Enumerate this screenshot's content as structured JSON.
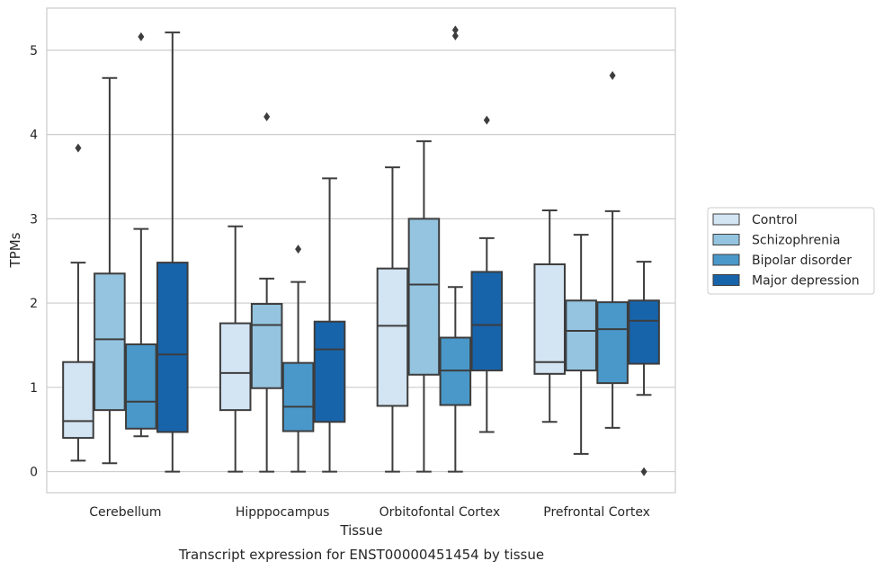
{
  "chart_data": {
    "type": "box",
    "title": "",
    "caption": "Transcript expression for ENST00000451454 by tissue",
    "xlabel": "Tissue",
    "ylabel": "TPMs",
    "ylim": [
      -0.25,
      5.5
    ],
    "yticks": [
      0,
      1,
      2,
      3,
      4,
      5
    ],
    "grid": "horizontal",
    "legend_position": "right",
    "categories": [
      "Cerebellum",
      "Hipppocampus",
      "Orbitofontal Cortex",
      "Prefrontal Cortex"
    ],
    "series": [
      {
        "name": "Control",
        "color": "#d3e4f3",
        "boxes": [
          {
            "whisker_low": 0.13,
            "q1": 0.4,
            "median": 0.6,
            "q3": 1.3,
            "whisker_high": 2.48,
            "outliers": [
              3.84
            ]
          },
          {
            "whisker_low": 0.0,
            "q1": 0.73,
            "median": 1.17,
            "q3": 1.76,
            "whisker_high": 2.91,
            "outliers": []
          },
          {
            "whisker_low": 0.0,
            "q1": 0.78,
            "median": 1.73,
            "q3": 2.41,
            "whisker_high": 3.61,
            "outliers": []
          },
          {
            "whisker_low": 0.59,
            "q1": 1.16,
            "median": 1.3,
            "q3": 2.46,
            "whisker_high": 3.1,
            "outliers": []
          }
        ]
      },
      {
        "name": "Schizophrenia",
        "color": "#94c4df",
        "boxes": [
          {
            "whisker_low": 0.1,
            "q1": 0.73,
            "median": 1.57,
            "q3": 2.35,
            "whisker_high": 4.67,
            "outliers": []
          },
          {
            "whisker_low": 0.0,
            "q1": 0.99,
            "median": 1.74,
            "q3": 1.99,
            "whisker_high": 2.29,
            "outliers": [
              4.21
            ]
          },
          {
            "whisker_low": 0.0,
            "q1": 1.15,
            "median": 2.22,
            "q3": 3.0,
            "whisker_high": 3.92,
            "outliers": []
          },
          {
            "whisker_low": 0.21,
            "q1": 1.2,
            "median": 1.67,
            "q3": 2.03,
            "whisker_high": 2.81,
            "outliers": []
          }
        ]
      },
      {
        "name": "Bipolar disorder",
        "color": "#4a98c9",
        "boxes": [
          {
            "whisker_low": 0.42,
            "q1": 0.51,
            "median": 0.83,
            "q3": 1.51,
            "whisker_high": 2.88,
            "outliers": [
              5.16
            ]
          },
          {
            "whisker_low": 0.0,
            "q1": 0.48,
            "median": 0.77,
            "q3": 1.29,
            "whisker_high": 2.25,
            "outliers": [
              2.64
            ]
          },
          {
            "whisker_low": 0.0,
            "q1": 0.79,
            "median": 1.2,
            "q3": 1.59,
            "whisker_high": 2.19,
            "outliers": [
              5.17,
              5.24
            ]
          },
          {
            "whisker_low": 0.52,
            "q1": 1.05,
            "median": 1.69,
            "q3": 2.01,
            "whisker_high": 3.09,
            "outliers": [
              4.7
            ]
          }
        ]
      },
      {
        "name": "Major depression",
        "color": "#1764ab",
        "boxes": [
          {
            "whisker_low": 0.0,
            "q1": 0.47,
            "median": 1.39,
            "q3": 2.48,
            "whisker_high": 5.21,
            "outliers": []
          },
          {
            "whisker_low": 0.0,
            "q1": 0.59,
            "median": 1.45,
            "q3": 1.78,
            "whisker_high": 3.48,
            "outliers": []
          },
          {
            "whisker_low": 0.47,
            "q1": 1.2,
            "median": 1.74,
            "q3": 2.37,
            "whisker_high": 2.77,
            "outliers": [
              4.17
            ]
          },
          {
            "whisker_low": 0.91,
            "q1": 1.28,
            "median": 1.79,
            "q3": 2.03,
            "whisker_high": 2.49,
            "outliers": [
              0.0
            ]
          }
        ]
      }
    ],
    "line_color": "#3d3d3d",
    "grid_color": "#cccccc"
  }
}
